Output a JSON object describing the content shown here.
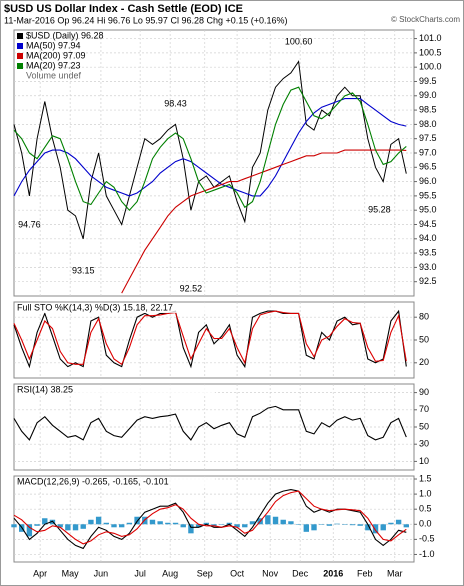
{
  "chart_data": [
    {
      "type": "line",
      "title": "$USD US Dollar Index - Cash Settle (EOD) ICE",
      "subtitle": "11-Mar-2016   Op 96.24  Hi 96.76  Lo 95.97  Cl 96.28  Chg +0.15 (+0.16%)",
      "watermark": "© StockCharts.com",
      "legend_note": "Volume undef",
      "x": [
        0,
        1,
        2,
        3,
        4,
        5,
        6,
        7,
        8,
        9,
        10,
        11,
        12,
        13,
        14,
        15,
        16,
        17,
        18,
        19,
        20,
        21,
        22,
        23,
        24,
        25,
        26,
        27,
        28,
        29,
        30,
        31,
        32,
        33,
        34,
        35,
        36,
        37,
        38,
        39,
        40,
        41,
        42,
        43,
        44,
        45,
        46,
        47,
        48,
        49,
        50,
        51
      ],
      "xlim": [
        0,
        52
      ],
      "xticks": [
        {
          "value": 3.4,
          "label": "Apr"
        },
        {
          "value": 7.3,
          "label": "May"
        },
        {
          "value": 11.3,
          "label": "Jun"
        },
        {
          "value": 16.4,
          "label": "Jul"
        },
        {
          "value": 20.3,
          "label": "Aug"
        },
        {
          "value": 24.8,
          "label": "Sep"
        },
        {
          "value": 29.0,
          "label": "Oct"
        },
        {
          "value": 33.3,
          "label": "Nov"
        },
        {
          "value": 37.2,
          "label": "Dec"
        },
        {
          "value": 41.5,
          "label": "2016"
        },
        {
          "value": 45.6,
          "label": "Feb"
        },
        {
          "value": 49.5,
          "label": "Mar"
        }
      ],
      "ylim": [
        92.0,
        101.3
      ],
      "yticks": [
        {
          "value": 92.5,
          "label": "92.5"
        },
        {
          "value": 93,
          "label": "93.0"
        },
        {
          "value": 93.5,
          "label": "93.5"
        },
        {
          "value": 94,
          "label": "94.0"
        },
        {
          "value": 94.5,
          "label": "94.5"
        },
        {
          "value": 95,
          "label": "95.0"
        },
        {
          "value": 95.5,
          "label": "95.5"
        },
        {
          "value": 96,
          "label": "96.0"
        },
        {
          "value": 96.5,
          "label": "96.5"
        },
        {
          "value": 97,
          "label": "97.0"
        },
        {
          "value": 97.5,
          "label": "97.5"
        },
        {
          "value": 98,
          "label": "98.0"
        },
        {
          "value": 98.5,
          "label": "98.5"
        },
        {
          "value": 99,
          "label": "99.0"
        },
        {
          "value": 99.5,
          "label": "99.5"
        },
        {
          "value": 100,
          "label": "100.0"
        },
        {
          "value": 100.5,
          "label": "100.5"
        },
        {
          "value": 101,
          "label": "101.0"
        }
      ],
      "grid": true,
      "series": [
        {
          "name": "$USD (Daily) 96.28",
          "color": "#000000",
          "values": [
            98.0,
            97.0,
            95.5,
            97.5,
            98.8,
            97.5,
            96.5,
            95.0,
            94.8,
            94.0,
            96.0,
            97.0,
            95.5,
            95.0,
            94.5,
            95.5,
            96.5,
            97.5,
            97.3,
            97.5,
            97.8,
            98.0,
            96.8,
            95.0,
            96.0,
            96.2,
            95.8,
            96.0,
            96.2,
            95.3,
            94.6,
            96.5,
            97.0,
            98.5,
            99.3,
            99.6,
            99.8,
            100.2,
            98.0,
            97.8,
            98.5,
            98.3,
            99.0,
            99.3,
            99.0,
            99.0,
            97.5,
            96.5,
            96.0,
            97.3,
            97.5,
            96.28
          ]
        },
        {
          "name": "MA(50) 97.94",
          "color": "#0000cc",
          "values": [
            95.5,
            96.0,
            96.4,
            96.7,
            97.0,
            97.1,
            97.1,
            97.0,
            96.8,
            96.5,
            96.2,
            96.0,
            95.8,
            95.7,
            95.6,
            95.5,
            95.6,
            95.8,
            96.0,
            96.3,
            96.5,
            96.7,
            96.8,
            96.7,
            96.5,
            96.3,
            96.1,
            95.9,
            95.8,
            95.7,
            95.6,
            95.5,
            95.5,
            95.8,
            96.2,
            96.7,
            97.2,
            97.7,
            98.1,
            98.4,
            98.6,
            98.7,
            98.8,
            98.9,
            98.9,
            98.9,
            98.7,
            98.5,
            98.3,
            98.1,
            98.0,
            97.94
          ]
        },
        {
          "name": "MA(200) 97.09",
          "color": "#cc0000",
          "values": [
            null,
            null,
            null,
            null,
            null,
            null,
            null,
            null,
            null,
            null,
            null,
            null,
            null,
            null,
            92.1,
            92.6,
            93.1,
            93.6,
            94.0,
            94.4,
            94.8,
            95.1,
            95.3,
            95.5,
            95.6,
            95.7,
            95.8,
            95.9,
            96.0,
            96.0,
            96.1,
            96.2,
            96.3,
            96.4,
            96.5,
            96.6,
            96.7,
            96.8,
            96.9,
            96.9,
            97.0,
            97.0,
            97.0,
            97.1,
            97.1,
            97.1,
            97.1,
            97.1,
            97.1,
            97.1,
            97.1,
            97.09
          ]
        },
        {
          "name": "MA(20) 97.23",
          "color": "#008000",
          "values": [
            97.8,
            97.5,
            97.0,
            96.8,
            97.2,
            97.6,
            97.5,
            96.8,
            96.0,
            95.3,
            95.2,
            95.6,
            96.0,
            95.8,
            95.3,
            95.0,
            95.3,
            96.0,
            96.8,
            97.2,
            97.5,
            97.7,
            97.5,
            96.8,
            96.0,
            95.6,
            95.7,
            95.8,
            95.9,
            95.6,
            95.1,
            95.3,
            96.0,
            97.0,
            98.0,
            98.7,
            99.2,
            99.3,
            98.8,
            98.3,
            98.2,
            98.4,
            98.7,
            99.0,
            99.1,
            98.8,
            98.0,
            97.1,
            96.6,
            96.7,
            97.0,
            97.23
          ]
        }
      ],
      "annotations": [
        {
          "x": 2,
          "value": 94.76,
          "position": "below"
        },
        {
          "x": 9,
          "value": 93.15,
          "position": "below"
        },
        {
          "x": 21,
          "value": 98.43,
          "position": "above"
        },
        {
          "x": 23,
          "value": 92.52,
          "position": "below"
        },
        {
          "x": 37,
          "value": 100.6,
          "label": "100.60",
          "position": "above"
        },
        {
          "x": 47.5,
          "value": 95.28,
          "position": "below"
        }
      ]
    },
    {
      "type": "line",
      "title": "Full STO %K(14,3) %D(3) 15.18, 22.17",
      "ylim": [
        0,
        100
      ],
      "yticks": [
        20,
        50,
        80
      ],
      "grid": true,
      "series": [
        {
          "color": "#000000",
          "values": [
            70,
            40,
            15,
            60,
            85,
            55,
            25,
            15,
            20,
            15,
            75,
            80,
            30,
            20,
            15,
            50,
            80,
            85,
            80,
            85,
            85,
            88,
            40,
            15,
            60,
            70,
            45,
            55,
            70,
            30,
            15,
            80,
            85,
            88,
            88,
            85,
            85,
            85,
            30,
            25,
            60,
            50,
            75,
            80,
            70,
            72,
            25,
            20,
            25,
            75,
            88,
            15.18
          ]
        },
        {
          "color": "#dd0000",
          "values": [
            72,
            50,
            25,
            50,
            75,
            65,
            35,
            20,
            18,
            18,
            60,
            78,
            45,
            25,
            18,
            40,
            70,
            82,
            82,
            83,
            85,
            86,
            55,
            25,
            45,
            65,
            52,
            52,
            65,
            40,
            20,
            65,
            83,
            86,
            88,
            86,
            85,
            85,
            45,
            28,
            50,
            55,
            68,
            78,
            73,
            72,
            40,
            22,
            23,
            60,
            82,
            22.17
          ]
        }
      ]
    },
    {
      "type": "line",
      "title": "RSI(14) 38.25",
      "ylim": [
        0,
        100
      ],
      "yticks": [
        10,
        30,
        50,
        70,
        90
      ],
      "grid": true,
      "series": [
        {
          "color": "#000000",
          "values": [
            60,
            45,
            35,
            55,
            62,
            52,
            45,
            38,
            40,
            35,
            55,
            60,
            45,
            40,
            38,
            48,
            58,
            62,
            60,
            62,
            63,
            65,
            45,
            35,
            50,
            55,
            48,
            52,
            55,
            42,
            38,
            62,
            66,
            72,
            74,
            70,
            70,
            70,
            45,
            42,
            55,
            50,
            58,
            62,
            58,
            60,
            40,
            35,
            38,
            55,
            60,
            38.25
          ]
        }
      ]
    },
    {
      "type": "line",
      "title": "MACD(12,26,9) -0.265, -0.165, -0.101",
      "ylim": [
        -1.25,
        1.6
      ],
      "yticks": [
        {
          "value": -1,
          "label": "-1.0"
        },
        -0.5,
        {
          "value": 0,
          "label": "0.0"
        },
        0.5,
        {
          "value": 1,
          "label": "1.0"
        },
        1.5
      ],
      "grid": true,
      "series": [
        {
          "color": "#3399cc",
          "kind": "bar",
          "values": [
            -0.1,
            -0.25,
            -0.4,
            -0.05,
            0.2,
            0.15,
            -0.1,
            -0.2,
            -0.2,
            -0.15,
            0.15,
            0.25,
            0.05,
            -0.1,
            -0.1,
            0.05,
            0.25,
            0.25,
            0.15,
            0.1,
            0.05,
            0.05,
            -0.1,
            -0.3,
            -0.1,
            0.05,
            -0.05,
            0.0,
            0.05,
            -0.1,
            -0.1,
            0.1,
            0.2,
            0.3,
            0.25,
            0.15,
            0.1,
            0.0,
            -0.25,
            -0.2,
            0.0,
            -0.05,
            0.02,
            0,
            -0.03,
            -0.05,
            -0.2,
            -0.3,
            -0.2,
            0.05,
            0.15,
            -0.101
          ]
        },
        {
          "color": "#000000",
          "values": [
            0.2,
            -0.1,
            -0.5,
            -0.3,
            0.0,
            0.1,
            -0.2,
            -0.5,
            -0.7,
            -0.8,
            -0.4,
            -0.1,
            -0.2,
            -0.4,
            -0.5,
            -0.3,
            0.1,
            0.4,
            0.5,
            0.6,
            0.6,
            0.7,
            0.4,
            -0.1,
            -0.1,
            0.0,
            -0.1,
            -0.1,
            0.0,
            -0.2,
            -0.4,
            -0.1,
            0.3,
            0.7,
            1.0,
            1.1,
            1.15,
            1.1,
            0.6,
            0.4,
            0.5,
            0.4,
            0.5,
            0.5,
            0.45,
            0.4,
            0.0,
            -0.5,
            -0.7,
            -0.5,
            -0.2,
            -0.265
          ]
        },
        {
          "color": "#dd0000",
          "values": [
            0.3,
            0.15,
            -0.1,
            -0.25,
            -0.2,
            -0.05,
            -0.1,
            -0.3,
            -0.5,
            -0.65,
            -0.55,
            -0.35,
            -0.25,
            -0.3,
            -0.4,
            -0.35,
            -0.15,
            0.15,
            0.35,
            0.5,
            0.55,
            0.65,
            0.5,
            0.2,
            0.0,
            -0.05,
            -0.05,
            -0.1,
            -0.05,
            -0.1,
            -0.3,
            -0.2,
            0.1,
            0.4,
            0.75,
            0.95,
            1.05,
            1.1,
            0.85,
            0.6,
            0.5,
            0.45,
            0.48,
            0.5,
            0.48,
            0.45,
            0.2,
            -0.2,
            -0.5,
            -0.55,
            -0.35,
            -0.165
          ]
        }
      ]
    }
  ]
}
